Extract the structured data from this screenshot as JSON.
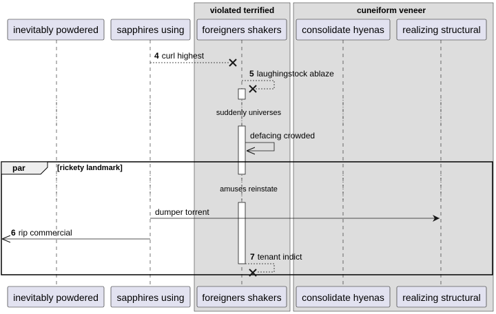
{
  "boxes": [
    {
      "title": "violated terrified"
    },
    {
      "title": "cuneiform veneer"
    }
  ],
  "participants": [
    "inevitably powdered",
    "sapphires using",
    "foreigners shakers",
    "consolidate hyenas",
    "realizing structural"
  ],
  "messages": [
    {
      "num": "4",
      "label": "curl highest"
    },
    {
      "num": "5",
      "label": "laughingstock ablaze"
    },
    {
      "num": "",
      "label": "defacing crowded"
    },
    {
      "num": "",
      "label": "dumper torrent"
    },
    {
      "num": "6",
      "label": "rip commercial"
    },
    {
      "num": "7",
      "label": "tenant indict"
    }
  ],
  "delays": [
    "suddenly universes",
    "amuses reinstate"
  ],
  "fragment": {
    "keyword": "par",
    "condition": "[rickety landmark]"
  },
  "colors": {
    "participant_fill": "#E2E2F0",
    "participant_border": "#181818",
    "box_fill": "#DDDDDD",
    "lifeline": "#181818",
    "text": "#000000"
  }
}
